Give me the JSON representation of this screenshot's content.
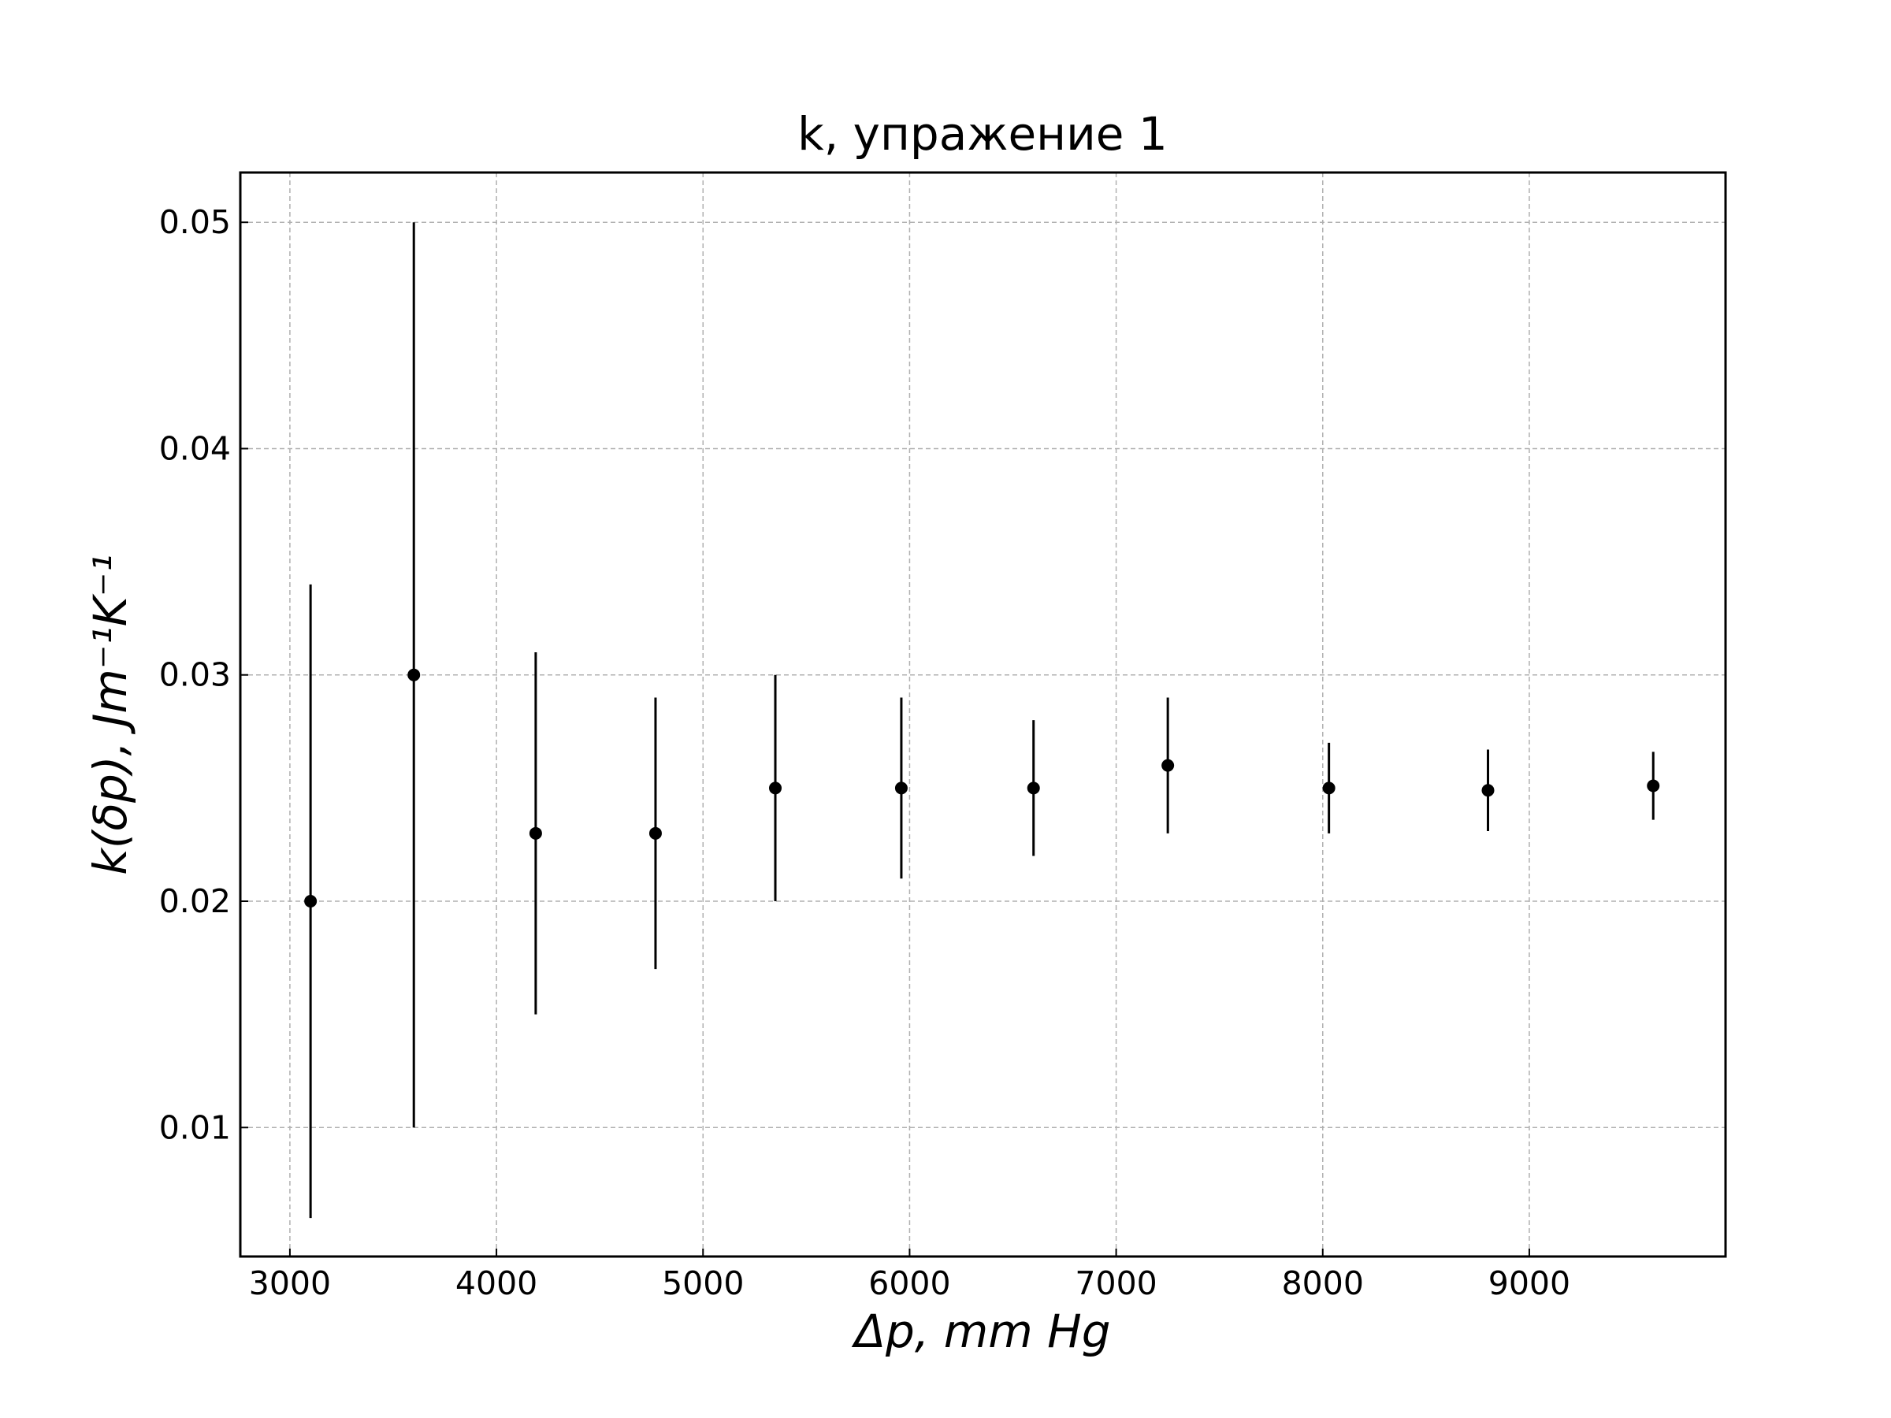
{
  "chart_data": {
    "type": "scatter",
    "title": "k, упражение 1",
    "xlabel": "Δp, mm Hg",
    "ylabel": "k(δp), Jm⁻¹K⁻¹",
    "xlim": [
      2760,
      9950
    ],
    "ylim": [
      0.0043,
      0.0522
    ],
    "xticks": [
      3000,
      4000,
      5000,
      6000,
      7000,
      8000,
      9000
    ],
    "xtick_labels": [
      "3000",
      "4000",
      "5000",
      "6000",
      "7000",
      "8000",
      "9000"
    ],
    "yticks": [
      0.01,
      0.02,
      0.03,
      0.04,
      0.05
    ],
    "ytick_labels": [
      "0.01",
      "0.02",
      "0.03",
      "0.04",
      "0.05"
    ],
    "grid": true,
    "series": [
      {
        "points": [
          {
            "x": 3100,
            "y": 0.02,
            "yerr_low": 0.006,
            "yerr_high": 0.034
          },
          {
            "x": 3600,
            "y": 0.03,
            "yerr_low": 0.01,
            "yerr_high": 0.05
          },
          {
            "x": 4190,
            "y": 0.023,
            "yerr_low": 0.015,
            "yerr_high": 0.031
          },
          {
            "x": 4770,
            "y": 0.023,
            "yerr_low": 0.017,
            "yerr_high": 0.029
          },
          {
            "x": 5350,
            "y": 0.025,
            "yerr_low": 0.02,
            "yerr_high": 0.03
          },
          {
            "x": 5960,
            "y": 0.025,
            "yerr_low": 0.021,
            "yerr_high": 0.029
          },
          {
            "x": 6600,
            "y": 0.025,
            "yerr_low": 0.022,
            "yerr_high": 0.028
          },
          {
            "x": 7250,
            "y": 0.026,
            "yerr_low": 0.023,
            "yerr_high": 0.029
          },
          {
            "x": 8030,
            "y": 0.025,
            "yerr_low": 0.023,
            "yerr_high": 0.027
          },
          {
            "x": 8800,
            "y": 0.0249,
            "yerr_low": 0.0231,
            "yerr_high": 0.0267
          },
          {
            "x": 9600,
            "y": 0.0251,
            "yerr_low": 0.0236,
            "yerr_high": 0.0266
          }
        ]
      }
    ],
    "colors": {
      "marker": "#000000",
      "errorbar": "#000000",
      "grid": "#b0b0b0"
    }
  }
}
